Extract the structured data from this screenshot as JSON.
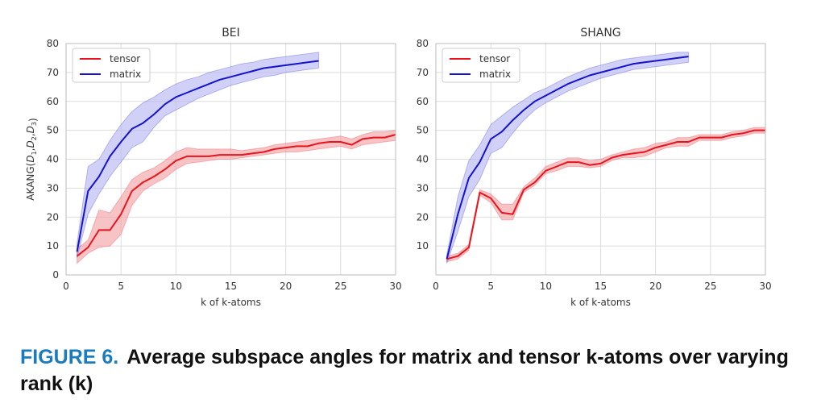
{
  "caption": {
    "label": "FIGURE 6.",
    "text": "Average subspace angles for matrix and tensor k-atoms over varying rank (k)"
  },
  "colors": {
    "tensor": "#e8141d",
    "tensor_band": "#f5a3a6",
    "matrix": "#1414d0",
    "matrix_band": "#b9b9f2",
    "grid": "#dddddd"
  },
  "chart_data": [
    {
      "type": "line",
      "title": "BEI",
      "xlabel": "k of k-atoms",
      "ylabel": "AKANG(D1,D2,D3)",
      "xlim": [
        0,
        30
      ],
      "ylim": [
        0,
        80
      ],
      "xticks": [
        0,
        5,
        10,
        15,
        20,
        25,
        30
      ],
      "yticks": [
        0,
        10,
        20,
        30,
        40,
        50,
        60,
        70,
        80
      ],
      "grid": true,
      "legend": "top-left",
      "series": [
        {
          "name": "tensor",
          "color": "#e8141d",
          "x": [
            1,
            2,
            3,
            4,
            5,
            6,
            7,
            8,
            9,
            10,
            11,
            12,
            13,
            14,
            15,
            16,
            17,
            18,
            19,
            20,
            21,
            22,
            23,
            24,
            25,
            26,
            27,
            28,
            29,
            30
          ],
          "y": [
            6.5,
            9.5,
            15.5,
            15.5,
            21,
            29,
            32,
            34,
            36.5,
            39.5,
            41,
            41,
            41,
            41.5,
            41.5,
            41.5,
            42,
            42.5,
            43.5,
            44,
            44.5,
            44.5,
            45.5,
            46,
            46,
            45,
            47,
            47.5,
            47.5,
            48.5
          ],
          "lower": [
            4,
            7.5,
            9.5,
            10,
            14,
            24,
            29,
            31.5,
            33.5,
            36.5,
            38.5,
            39,
            39.5,
            40,
            40,
            40.5,
            41,
            41.5,
            42,
            42.5,
            42.5,
            43,
            43.5,
            44,
            44.5,
            43.5,
            45,
            45.5,
            46,
            46.5
          ],
          "upper": [
            9,
            12,
            22.5,
            21.5,
            27,
            33,
            35.5,
            37,
            39.5,
            42.5,
            44,
            43.5,
            43.5,
            43.5,
            43.5,
            43,
            43.5,
            44,
            45,
            45.5,
            46,
            46.5,
            47,
            47.5,
            48,
            47,
            48.5,
            49.5,
            49.5,
            50
          ]
        },
        {
          "name": "matrix",
          "color": "#1414d0",
          "x": [
            1,
            2,
            3,
            4,
            5,
            6,
            7,
            8,
            9,
            10,
            11,
            12,
            13,
            14,
            15,
            16,
            17,
            18,
            19,
            20,
            21,
            22,
            23
          ],
          "y": [
            8,
            29,
            34,
            41,
            46,
            50.5,
            52.5,
            55.5,
            59,
            61.5,
            63,
            64.5,
            66,
            67.5,
            68.5,
            69.5,
            70.5,
            71.5,
            72,
            72.5,
            73,
            73.5,
            74
          ],
          "lower": [
            6,
            21,
            28,
            34,
            39,
            44,
            46,
            51,
            55,
            57,
            59,
            61,
            62.5,
            64,
            65.5,
            66.5,
            67.5,
            68.5,
            69,
            70,
            70.5,
            71,
            71.5
          ],
          "upper": [
            11,
            37.5,
            40,
            46.5,
            52,
            56.5,
            59.5,
            61.5,
            64,
            66,
            67.5,
            68.5,
            70,
            71,
            72,
            73,
            73.5,
            74.5,
            75,
            75.5,
            76,
            76.5,
            77
          ]
        }
      ]
    },
    {
      "type": "line",
      "title": "SHANG",
      "xlabel": "k of k-atoms",
      "ylabel": "",
      "xlim": [
        0,
        30
      ],
      "ylim": [
        0,
        80
      ],
      "xticks": [
        0,
        5,
        10,
        15,
        20,
        25,
        30
      ],
      "yticks": [
        10,
        20,
        30,
        40,
        50,
        60,
        70,
        80
      ],
      "grid": true,
      "legend": "top-left",
      "series": [
        {
          "name": "tensor",
          "color": "#e8141d",
          "x": [
            1,
            2,
            3,
            4,
            5,
            6,
            7,
            8,
            9,
            10,
            11,
            12,
            13,
            14,
            15,
            16,
            17,
            18,
            19,
            20,
            21,
            22,
            23,
            24,
            25,
            26,
            27,
            28,
            29,
            30
          ],
          "y": [
            5.5,
            6.5,
            9.5,
            28.5,
            26.5,
            21.5,
            21,
            29.5,
            32,
            36,
            37.5,
            39,
            39,
            38,
            38.5,
            40.5,
            41.5,
            42,
            42.5,
            44,
            45,
            46,
            46,
            47.5,
            47.5,
            47.5,
            48.5,
            49,
            50,
            50
          ],
          "lower": [
            4.5,
            5.5,
            8.5,
            27.5,
            25,
            19,
            19,
            28.5,
            31,
            35,
            36,
            37.5,
            37.5,
            37,
            37.5,
            39.5,
            40.5,
            40.5,
            41,
            42.5,
            44,
            44.5,
            44.5,
            46.5,
            46.5,
            46.5,
            47.5,
            48,
            49,
            49
          ],
          "upper": [
            6.5,
            7.5,
            10.5,
            29.5,
            28,
            24.5,
            24.5,
            30.5,
            33.5,
            37.5,
            39,
            40.5,
            40.5,
            39.5,
            40,
            41.5,
            42.5,
            43.5,
            44,
            45.5,
            46,
            47.5,
            47.5,
            48.5,
            48.5,
            48.5,
            49.5,
            50,
            51,
            51
          ]
        },
        {
          "name": "matrix",
          "color": "#1414d0",
          "x": [
            1,
            2,
            3,
            4,
            5,
            6,
            7,
            8,
            9,
            10,
            11,
            12,
            13,
            14,
            15,
            16,
            17,
            18,
            19,
            20,
            21,
            22,
            23
          ],
          "y": [
            5.5,
            21,
            33.5,
            39,
            47,
            49.5,
            53.5,
            57,
            60,
            62,
            64,
            66,
            67.5,
            69,
            70,
            71,
            72,
            73,
            73.5,
            74,
            74.5,
            75,
            75.5
          ],
          "lower": [
            4,
            15,
            27,
            33,
            42,
            44,
            49,
            53.5,
            57,
            59.5,
            61.5,
            63.5,
            65,
            66.5,
            68,
            69,
            70,
            71,
            71.5,
            72,
            72.5,
            73,
            73.5
          ],
          "upper": [
            7,
            27,
            39.5,
            45,
            52,
            55,
            58,
            60.5,
            63,
            64.5,
            66.5,
            68.5,
            70,
            71.5,
            72.5,
            73.5,
            74.5,
            75,
            75.5,
            76,
            76.5,
            77,
            77
          ]
        }
      ]
    }
  ]
}
